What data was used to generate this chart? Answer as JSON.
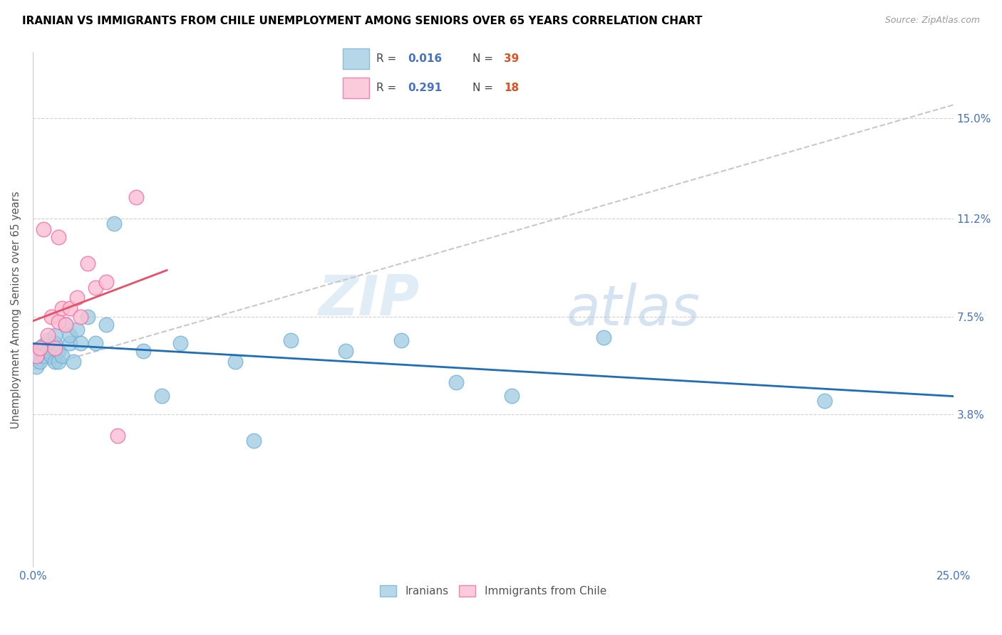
{
  "title": "IRANIAN VS IMMIGRANTS FROM CHILE UNEMPLOYMENT AMONG SENIORS OVER 65 YEARS CORRELATION CHART",
  "source": "Source: ZipAtlas.com",
  "ylabel": "Unemployment Among Seniors over 65 years",
  "y_tick_labels_right": [
    "3.8%",
    "7.5%",
    "11.2%",
    "15.0%"
  ],
  "y_tick_values": [
    0.038,
    0.075,
    0.112,
    0.15
  ],
  "xlim": [
    0.0,
    0.25
  ],
  "ylim": [
    -0.02,
    0.175
  ],
  "watermark_zip": "ZIP",
  "watermark_atlas": "atlas",
  "legend_r1_label": "R = ",
  "legend_r1_val": "0.016",
  "legend_n1_label": "N = ",
  "legend_n1_val": "39",
  "legend_r2_label": "R = ",
  "legend_r2_val": "0.291",
  "legend_n2_label": "N = ",
  "legend_n2_val": "18",
  "color_iranian": "#9ecae1",
  "color_chile": "#fcbfd2",
  "color_iranian_edge": "#6baed6",
  "color_chile_edge": "#f768a1",
  "trendline_color_iranian": "#1f6eb5",
  "trendline_color_chile": "#e8506a",
  "trendline_dashed_color": "#c8c8c8",
  "legend_color_r": "#4472c4",
  "legend_color_n": "#e05020",
  "iranians_x": [
    0.001,
    0.001,
    0.002,
    0.002,
    0.002,
    0.003,
    0.003,
    0.004,
    0.004,
    0.005,
    0.005,
    0.006,
    0.006,
    0.006,
    0.007,
    0.007,
    0.008,
    0.009,
    0.01,
    0.01,
    0.011,
    0.012,
    0.013,
    0.015,
    0.017,
    0.02,
    0.022,
    0.03,
    0.035,
    0.04,
    0.055,
    0.06,
    0.07,
    0.085,
    0.1,
    0.115,
    0.13,
    0.155,
    0.215
  ],
  "iranians_y": [
    0.06,
    0.056,
    0.058,
    0.062,
    0.063,
    0.06,
    0.064,
    0.062,
    0.066,
    0.063,
    0.06,
    0.065,
    0.068,
    0.058,
    0.062,
    0.058,
    0.06,
    0.072,
    0.065,
    0.068,
    0.058,
    0.07,
    0.065,
    0.075,
    0.065,
    0.072,
    0.11,
    0.062,
    0.045,
    0.065,
    0.058,
    0.028,
    0.066,
    0.062,
    0.066,
    0.05,
    0.045,
    0.067,
    0.043
  ],
  "chile_x": [
    0.001,
    0.002,
    0.003,
    0.004,
    0.005,
    0.006,
    0.007,
    0.007,
    0.008,
    0.009,
    0.01,
    0.012,
    0.013,
    0.015,
    0.017,
    0.02,
    0.023,
    0.028
  ],
  "chile_y": [
    0.06,
    0.063,
    0.108,
    0.068,
    0.075,
    0.063,
    0.073,
    0.105,
    0.078,
    0.072,
    0.078,
    0.082,
    0.075,
    0.095,
    0.086,
    0.088,
    0.03,
    0.12
  ]
}
